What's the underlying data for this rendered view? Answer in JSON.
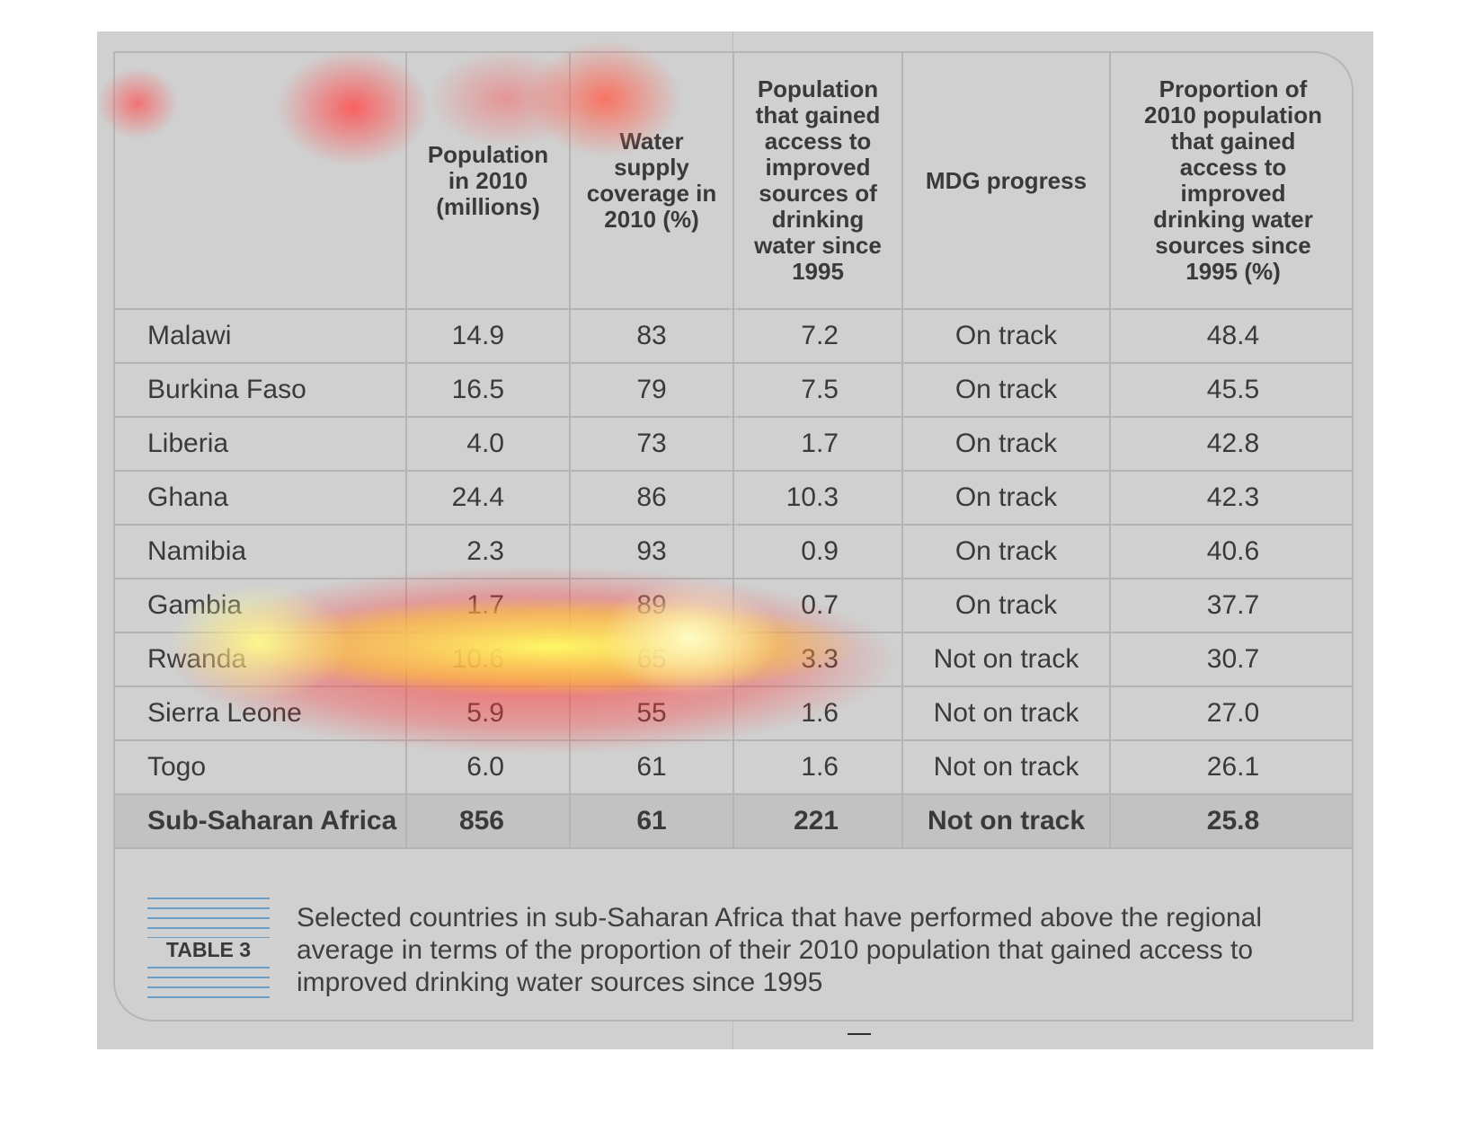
{
  "table": {
    "headers": [
      "",
      "Population in 2010 (millions)",
      "Water supply coverage in 2010 (%)",
      "Population that gained access to improved sources of drinking water since 1995",
      "MDG progress",
      "Proportion of 2010 population that gained access to improved drinking water sources since 1995 (%)"
    ],
    "rows": [
      [
        "Malawi",
        "14.9",
        "83",
        "7.2",
        "On track",
        "48.4"
      ],
      [
        "Burkina Faso",
        "16.5",
        "79",
        "7.5",
        "On track",
        "45.5"
      ],
      [
        "Liberia",
        "4.0",
        "73",
        "1.7",
        "On track",
        "42.8"
      ],
      [
        "Ghana",
        "24.4",
        "86",
        "10.3",
        "On track",
        "42.3"
      ],
      [
        "Namibia",
        "2.3",
        "93",
        "0.9",
        "On track",
        "40.6"
      ],
      [
        "Gambia",
        "1.7",
        "89",
        "0.7",
        "On track",
        "37.7"
      ],
      [
        "Rwanda",
        "10.6",
        "65",
        "3.3",
        "Not on track",
        "30.7"
      ],
      [
        "Sierra Leone",
        "5.9",
        "55",
        "1.6",
        "Not on track",
        "27.0"
      ],
      [
        "Togo",
        "6.0",
        "61",
        "1.6",
        "Not on track",
        "26.1"
      ]
    ],
    "total": [
      "Sub-Saharan Africa",
      "856",
      "61",
      "221",
      "Not on track",
      "25.8"
    ]
  },
  "caption": {
    "badge": "TABLE 3",
    "text": "Selected countries in sub-Saharan Africa that have performed above the regional average in terms of the proportion of their 2010 population that gained access to improved drinking water sources since 1995"
  },
  "colors": {
    "page_bg": "#d0d0d0",
    "badge_lines": "#6b9dc5",
    "heat_hot": "#ffff66",
    "heat_warm": "#ff4d4d"
  }
}
